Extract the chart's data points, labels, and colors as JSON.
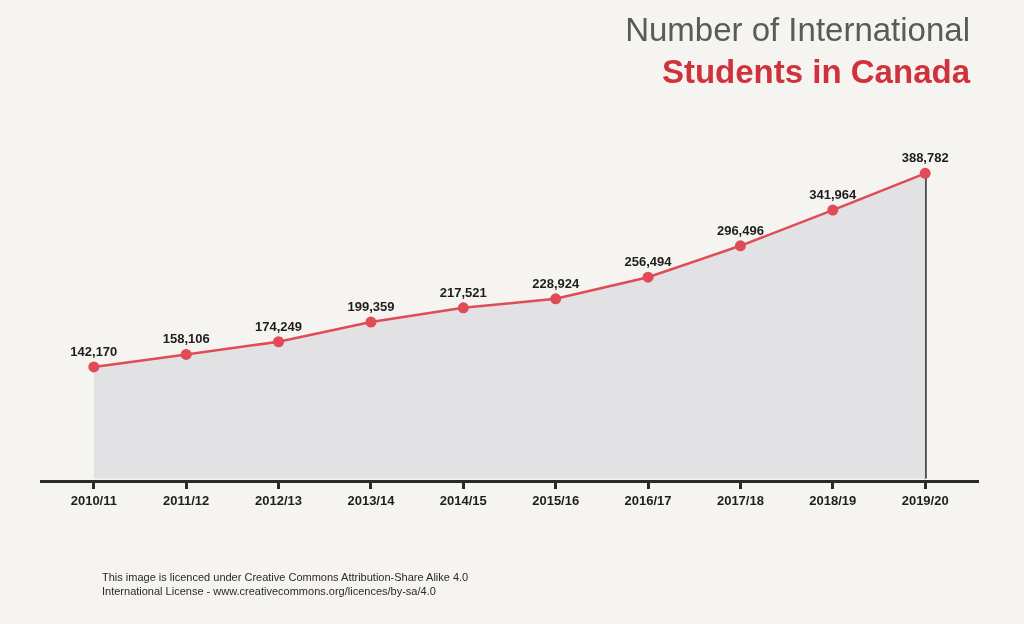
{
  "chart_data": {
    "type": "area",
    "title": "Number of International\nStudents in Canada",
    "categories": [
      "2010/11",
      "2011/12",
      "2012/13",
      "2013/14",
      "2014/15",
      "2015/16",
      "2016/17",
      "2017/18",
      "2018/19",
      "2019/20"
    ],
    "series": [
      {
        "color": "#e2e2e5",
        "colors": [
          "#e04b55",
          "#e04b55",
          "#e04b55",
          "#e04b55",
          "#e04b55",
          "#e04b55",
          "#e04b55",
          "#e04b55",
          "#e04b55",
          "#e04b55"
        ],
        "values": [
          142170,
          158106,
          174249,
          199359,
          217521,
          228924,
          256494,
          296496,
          341964,
          388782
        ],
        "value_labels": [
          "142,170",
          "158,106",
          "174,249",
          "199,359",
          "217,521",
          "228,924",
          "256,494",
          "296,496",
          "341,964",
          "388,782"
        ]
      }
    ],
    "marker": "circle",
    "line_style": "solid",
    "tick_labels": "x",
    "annotations": [
      "This image is licenced under Creative Commons Attribution-Share Alike 4.0\nInternational License - www.creativecommons.org/licences/by-sa/4.0"
    ]
  }
}
